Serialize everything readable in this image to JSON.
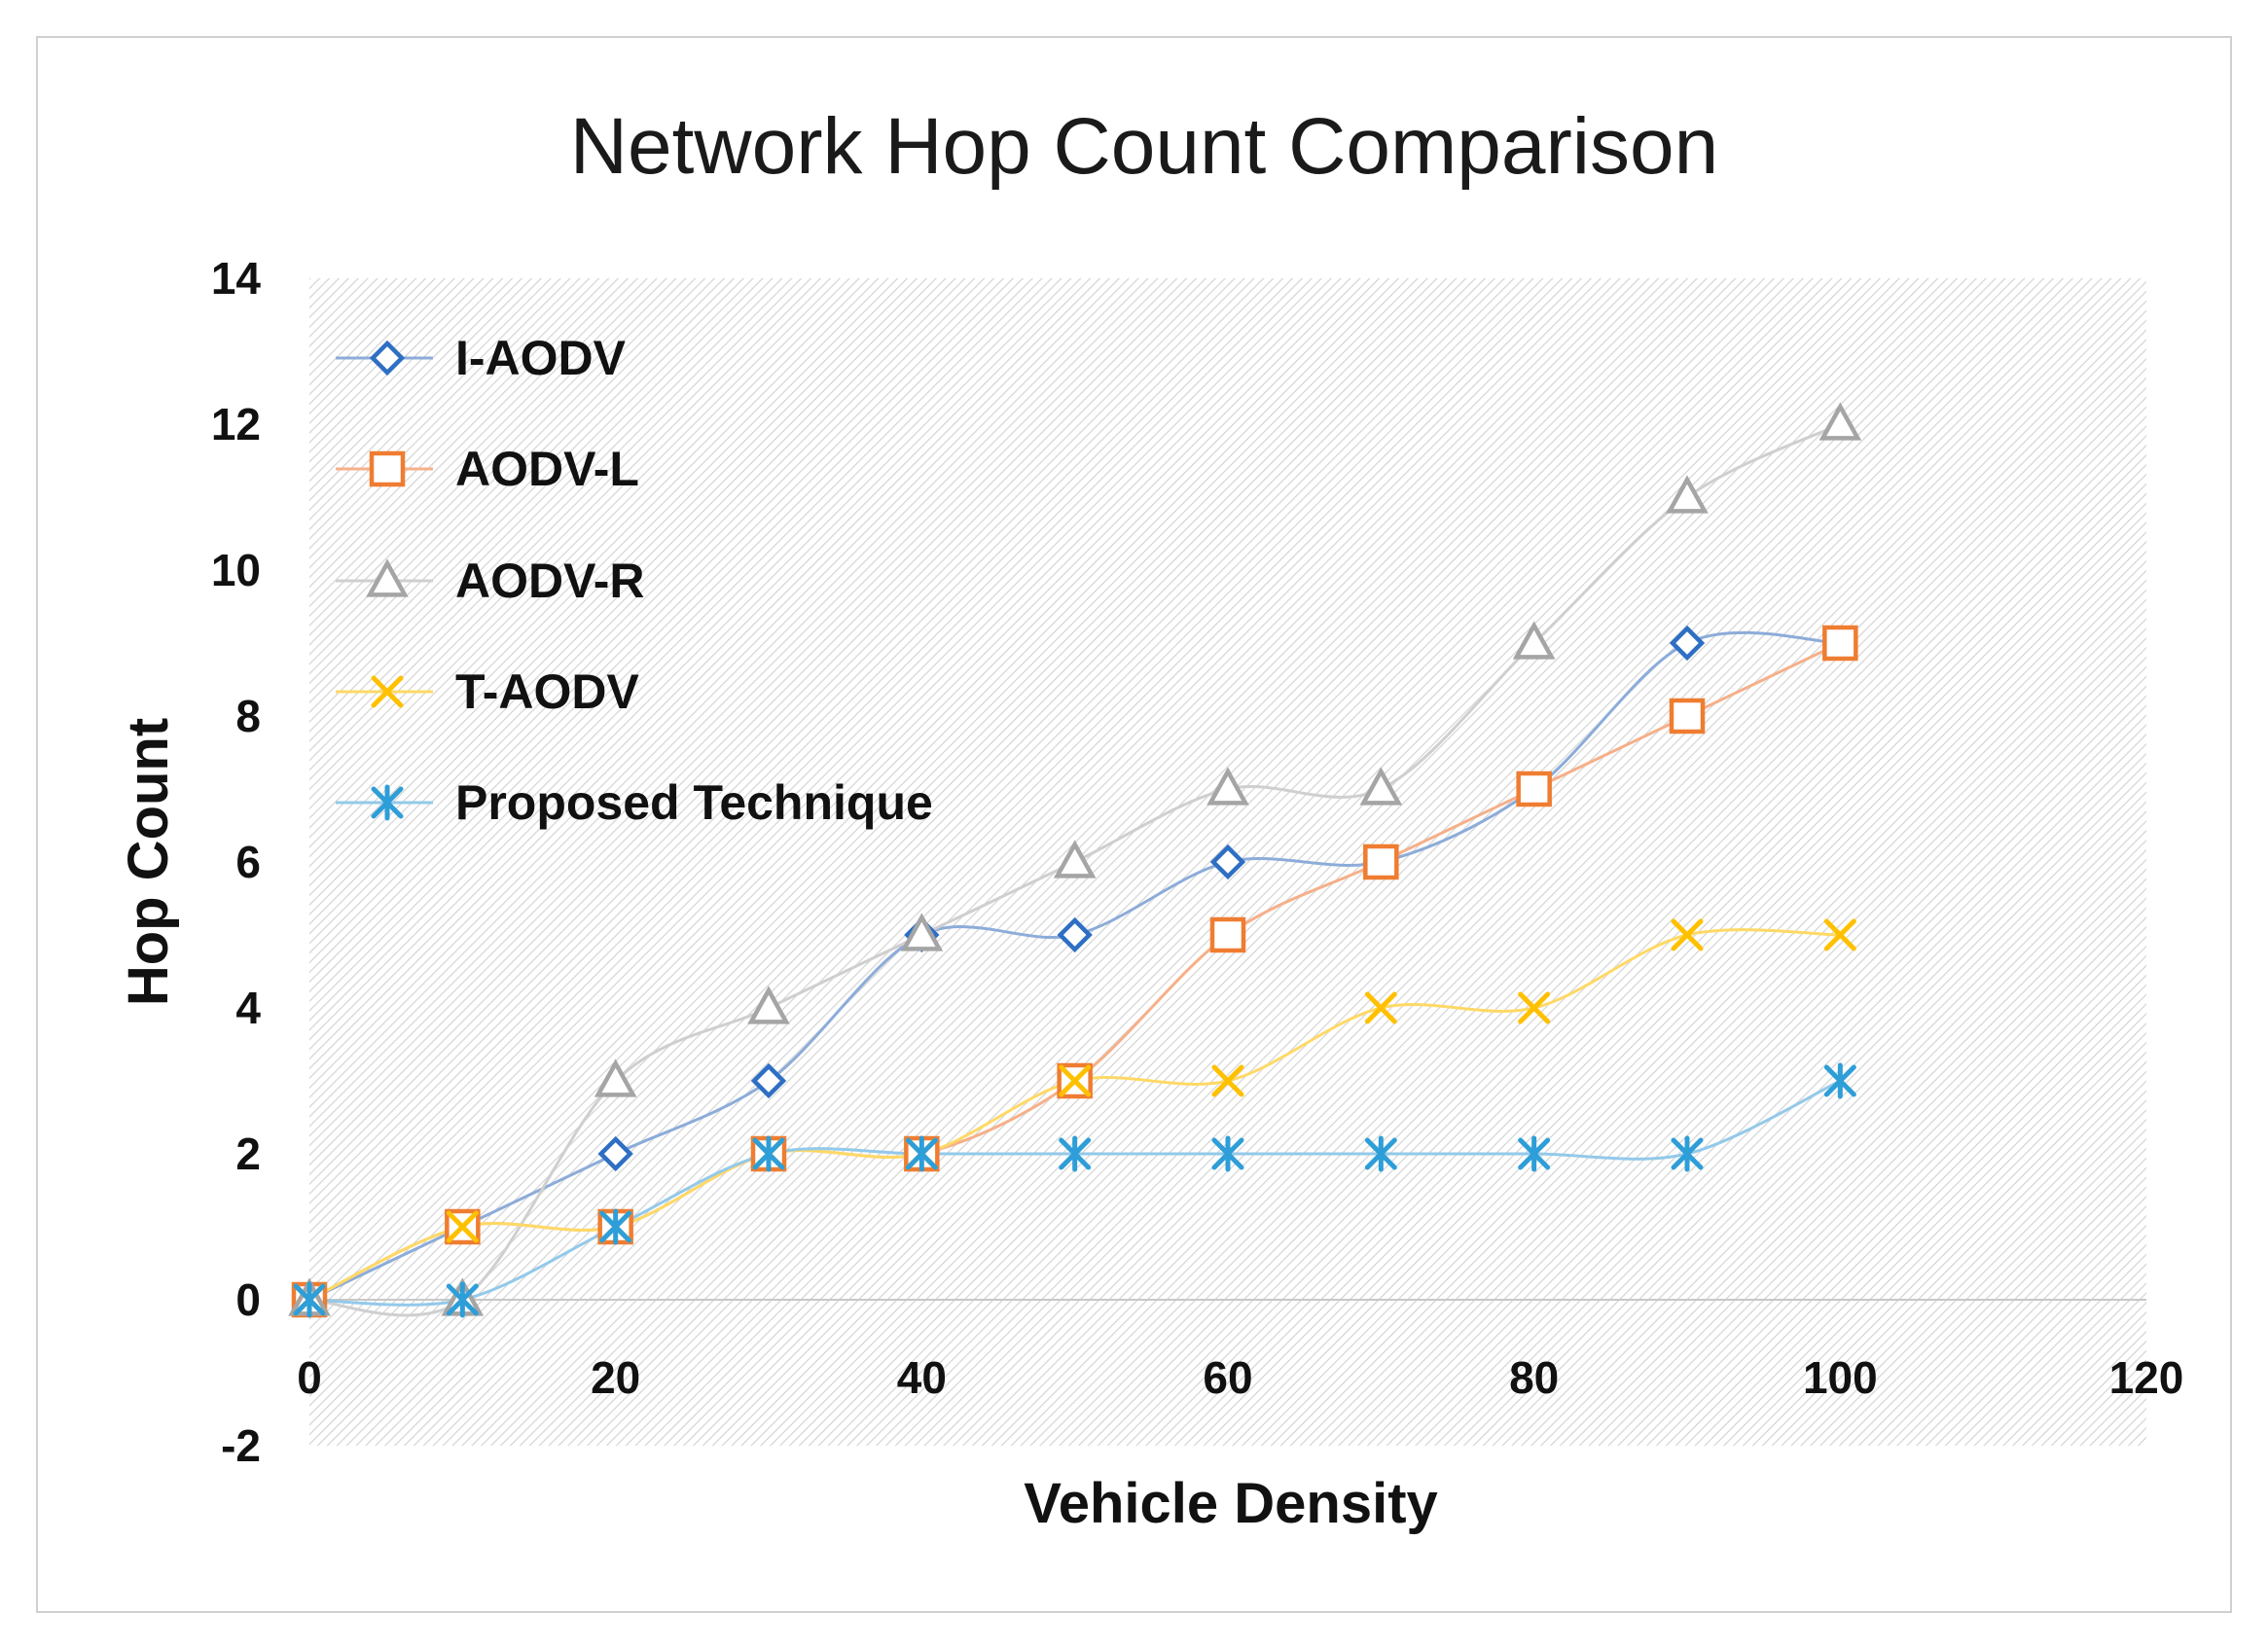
{
  "chart_data": {
    "type": "line",
    "title": "Network Hop Count Comparison",
    "xlabel": "Vehicle Density",
    "ylabel": "Hop Count",
    "xlim": [
      0,
      120
    ],
    "ylim": [
      -2,
      14
    ],
    "x_ticks": [
      "0",
      "20",
      "40",
      "60",
      "80",
      "100",
      "120"
    ],
    "y_ticks": [
      "-2",
      "0",
      "2",
      "4",
      "6",
      "8",
      "10",
      "12",
      "14"
    ],
    "x": [
      0,
      10,
      20,
      30,
      40,
      50,
      60,
      70,
      80,
      90,
      100
    ],
    "legend_position": "top-left",
    "series": [
      {
        "name": "I-AODV",
        "marker": "diamond",
        "color": "#2e6fc4",
        "line_color": "#8cacd9",
        "values": [
          0,
          1,
          2,
          3,
          5,
          5,
          6,
          6,
          7,
          9,
          9
        ]
      },
      {
        "name": "AODV-L",
        "marker": "square",
        "color": "#ef7d31",
        "line_color": "#f5b08a",
        "values": [
          0,
          1,
          1,
          2,
          2,
          3,
          5,
          6,
          7,
          8,
          9
        ]
      },
      {
        "name": "AODV-R",
        "marker": "triangle",
        "color": "#a5a5a5",
        "line_color": "#cfcfcf",
        "values": [
          0,
          0,
          3,
          4,
          5,
          6,
          7,
          7,
          9,
          11,
          12
        ]
      },
      {
        "name": "T-AODV",
        "marker": "x",
        "color": "#ffc000",
        "line_color": "#ffd966",
        "values": [
          0,
          1,
          1,
          2,
          2,
          3,
          3,
          4,
          4,
          5,
          5
        ]
      },
      {
        "name": "Proposed Technique",
        "marker": "star",
        "color": "#2e9ed8",
        "line_color": "#93c9ea",
        "values": [
          0,
          0,
          1,
          2,
          2,
          2,
          2,
          2,
          2,
          2,
          3
        ]
      }
    ]
  }
}
